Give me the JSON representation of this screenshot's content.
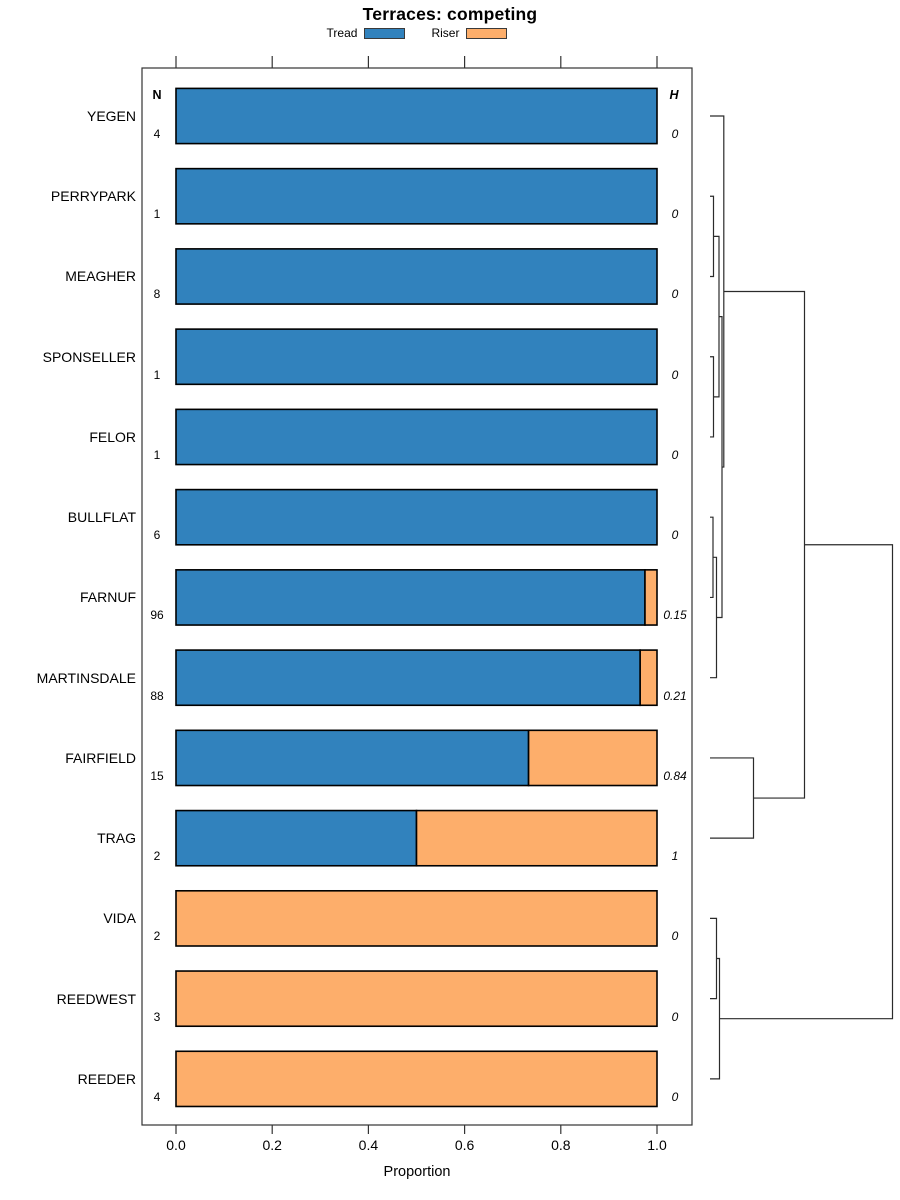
{
  "title": "Terraces: competing",
  "xlabel": "Proportion",
  "columns": {
    "n_header": "N",
    "h_header": "H"
  },
  "legend": [
    {
      "label": "Tread",
      "color": "#3182BD"
    },
    {
      "label": "Riser",
      "color": "#FDAE6B"
    }
  ],
  "x_ticks": [
    "0.0",
    "0.2",
    "0.4",
    "0.6",
    "0.8",
    "1.0"
  ],
  "chart_data": {
    "type": "bar",
    "orientation": "horizontal-stacked",
    "title": "Terraces: competing",
    "xlabel": "Proportion",
    "xlim": [
      0,
      1
    ],
    "x_tick_values": [
      0.0,
      0.2,
      0.4,
      0.6,
      0.8,
      1.0
    ],
    "categories": [
      "YEGEN",
      "PERRYPARK",
      "MEAGHER",
      "SPONSELLER",
      "FELOR",
      "BULLFLAT",
      "FARNUF",
      "MARTINSDALE",
      "FAIRFIELD",
      "TRAG",
      "VIDA",
      "REEDWEST",
      "REEDER"
    ],
    "series": [
      {
        "name": "Tread",
        "color": "#3182BD",
        "values": [
          1,
          1,
          1,
          1,
          1,
          1,
          0.975,
          0.965,
          0.733,
          0.5,
          0,
          0,
          0
        ]
      },
      {
        "name": "Riser",
        "color": "#FDAE6B",
        "values": [
          0,
          0,
          0,
          0,
          0,
          0,
          0.025,
          0.035,
          0.267,
          0.5,
          1,
          1,
          1
        ]
      }
    ],
    "n_values": [
      4,
      1,
      8,
      1,
      1,
      6,
      96,
      88,
      15,
      2,
      2,
      3,
      4
    ],
    "h_values": [
      "0",
      "0",
      "0",
      "0",
      "0",
      "0",
      "0.15",
      "0.21",
      "0.84",
      "1",
      "0",
      "0",
      "0"
    ],
    "legend_position": "top",
    "grid": false,
    "dendrogram": {
      "leaf_x": 710,
      "merges": [
        {
          "id": "M1",
          "a": "L1",
          "b": "L2",
          "x": 713.5
        },
        {
          "id": "M2",
          "a": "L3",
          "b": "L4",
          "x": 713.5
        },
        {
          "id": "M3",
          "a": "M1",
          "b": "M2",
          "x": 719
        },
        {
          "id": "M4",
          "a": "L5",
          "b": "L6",
          "x": 713
        },
        {
          "id": "M5",
          "a": "M4",
          "b": "L7",
          "x": 716.5
        },
        {
          "id": "M6",
          "a": "M3",
          "b": "M5",
          "x": 722
        },
        {
          "id": "M7",
          "a": "L0",
          "b": "M6",
          "x": 723.8
        },
        {
          "id": "M8",
          "a": "L8",
          "b": "L9",
          "x": 753.5
        },
        {
          "id": "M9",
          "a": "M7",
          "b": "M8",
          "x": 804.5
        },
        {
          "id": "M10",
          "a": "L10",
          "b": "L11",
          "x": 716.5
        },
        {
          "id": "M11",
          "a": "M10",
          "b": "L12",
          "x": 719.5
        },
        {
          "id": "M12",
          "a": "M9",
          "b": "M11",
          "x": 892.5
        }
      ]
    }
  }
}
